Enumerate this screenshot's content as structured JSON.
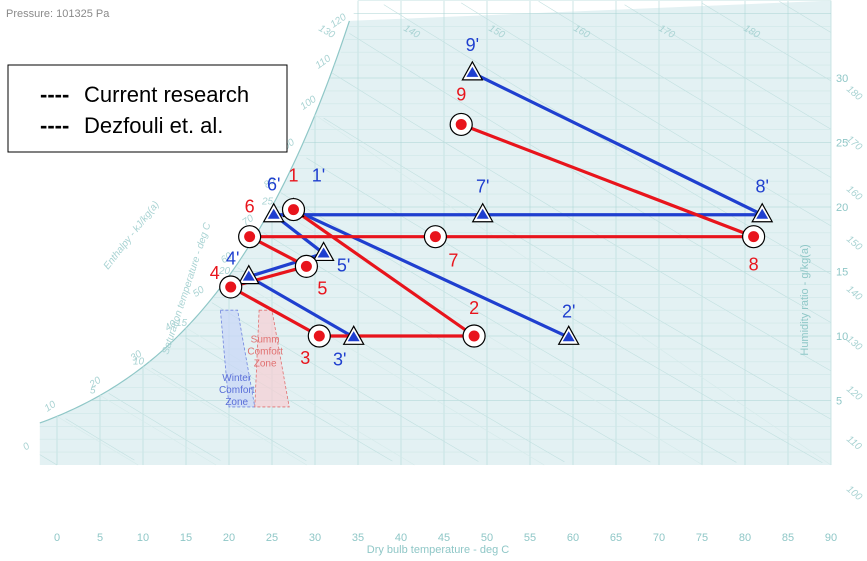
{
  "pressure_label": "Pressure: 101325 Pa",
  "legend": [
    {
      "dash": "----",
      "label": "Current research",
      "color": "#1f3fcf"
    },
    {
      "dash": "----",
      "label": "Dezfouli et. al.",
      "color": "#e8141c"
    }
  ],
  "chart_data": {
    "type": "scatter",
    "xlabel": "Dry bulb temperature - deg C",
    "ylabel": "Humidity ratio - g/kg(a)",
    "xlim": [
      -2,
      90
    ],
    "ylim": [
      -0.5,
      37
    ],
    "x_ticks": [
      "0",
      "5",
      "10",
      "15",
      "20",
      "25",
      "30",
      "35",
      "40",
      "45",
      "50",
      "55",
      "60",
      "65",
      "70",
      "75",
      "80",
      "85",
      "90"
    ],
    "y_ticks": [
      "5",
      "10",
      "15",
      "20",
      "25",
      "30"
    ],
    "enthalpy_label": "Enthalpy - kJ/kg(a)",
    "saturation_label": "Saturation temperature - deg C",
    "enthalpy_ticks_left": [
      "0",
      "10",
      "20",
      "30",
      "40",
      "50",
      "60",
      "70",
      "80",
      "90",
      "100",
      "110",
      "120"
    ],
    "enthalpy_ticks_top": [
      "130",
      "140",
      "150",
      "160",
      "170",
      "180"
    ],
    "enthalpy_ticks_right": [
      "180",
      "170",
      "160",
      "150",
      "140",
      "130",
      "120",
      "110",
      "100"
    ],
    "saturation_ticks": [
      "5",
      "10",
      "15",
      "20",
      "25"
    ],
    "zones": [
      {
        "name": "Summer Comfort Zone",
        "lines": [
          "Summ",
          "Comfort",
          "Zone"
        ],
        "color": "#e07070"
      },
      {
        "name": "Winter Comfort Zone",
        "lines": [
          "Winter",
          "Comfort",
          "Zone"
        ],
        "color": "#5a6fd8"
      }
    ],
    "series": [
      {
        "name": "Current research",
        "color": "#1f3fcf",
        "marker": "triangle",
        "points": [
          {
            "label": "1'",
            "x": 27.5,
            "y": 19.8
          },
          {
            "label": "2'",
            "x": 59.5,
            "y": 9.9
          },
          {
            "label": "3'",
            "x": 34.5,
            "y": 9.9
          },
          {
            "label": "4'",
            "x": 22.3,
            "y": 14.6
          },
          {
            "label": "5'",
            "x": 31.0,
            "y": 16.4
          },
          {
            "label": "6'",
            "x": 25.2,
            "y": 19.4
          },
          {
            "label": "7'",
            "x": 49.5,
            "y": 19.4
          },
          {
            "label": "8'",
            "x": 82.0,
            "y": 19.4
          },
          {
            "label": "9'",
            "x": 48.3,
            "y": 30.4
          }
        ],
        "segments": [
          [
            "1'",
            "2'"
          ],
          [
            "4'",
            "3'"
          ],
          [
            "4'",
            "5'"
          ],
          [
            "6'",
            "5'"
          ],
          [
            "6'",
            "8'"
          ],
          [
            "9'",
            "8'"
          ]
        ]
      },
      {
        "name": "Dezfouli et. al.",
        "color": "#e8141c",
        "marker": "circle",
        "points": [
          {
            "label": "1",
            "x": 27.5,
            "y": 19.8
          },
          {
            "label": "2",
            "x": 48.5,
            "y": 10.0
          },
          {
            "label": "3",
            "x": 30.5,
            "y": 10.0
          },
          {
            "label": "4",
            "x": 20.2,
            "y": 13.8
          },
          {
            "label": "5",
            "x": 29.0,
            "y": 15.4
          },
          {
            "label": "6",
            "x": 22.4,
            "y": 17.7
          },
          {
            "label": "7",
            "x": 44.0,
            "y": 17.7
          },
          {
            "label": "8",
            "x": 81.0,
            "y": 17.7
          },
          {
            "label": "9",
            "x": 47.0,
            "y": 26.4
          }
        ],
        "segments": [
          [
            "1",
            "2"
          ],
          [
            "3",
            "2"
          ],
          [
            "4",
            "3"
          ],
          [
            "4",
            "5"
          ],
          [
            "6",
            "5"
          ],
          [
            "6",
            "8"
          ],
          [
            "9",
            "8"
          ]
        ]
      }
    ]
  }
}
